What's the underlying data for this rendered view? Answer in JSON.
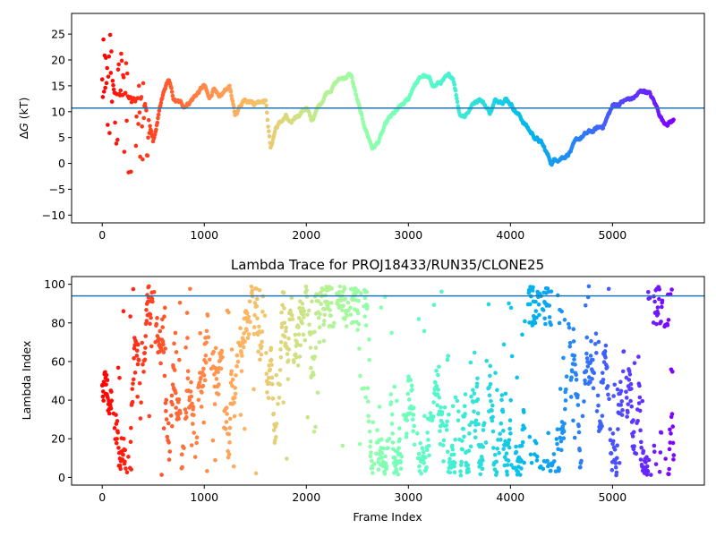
{
  "chart_data": [
    {
      "type": "scatter",
      "title": "",
      "xlabel": "",
      "ylabel": "ΔG (kT)",
      "ylabel_parts": {
        "delta": "Δ",
        "var": "G",
        "unit": " (kT)"
      },
      "xlim": [
        -300,
        5900
      ],
      "ylim": [
        -11.5,
        29
      ],
      "xticks": [
        0,
        1000,
        2000,
        3000,
        4000,
        5000
      ],
      "yticks": [
        -10,
        -5,
        0,
        5,
        10,
        15,
        20,
        25
      ],
      "hline": 10.7,
      "hline_color": "#1f77b4",
      "colormap": "rainbow",
      "grid": false,
      "series": [
        {
          "x_range": [
            0,
            5600
          ],
          "anchors": [
            [
              0,
              12
            ],
            [
              80,
              18
            ],
            [
              120,
              14
            ],
            [
              200,
              14
            ],
            [
              300,
              12
            ],
            [
              400,
              13
            ],
            [
              500,
              4
            ],
            [
              550,
              9
            ],
            [
              600,
              13
            ],
            [
              650,
              16
            ],
            [
              700,
              12
            ],
            [
              800,
              11
            ],
            [
              900,
              13
            ],
            [
              1000,
              15
            ],
            [
              1050,
              12
            ],
            [
              1100,
              15
            ],
            [
              1150,
              12
            ],
            [
              1250,
              15
            ],
            [
              1300,
              9
            ],
            [
              1400,
              13
            ],
            [
              1500,
              12
            ],
            [
              1600,
              13
            ],
            [
              1650,
              3
            ],
            [
              1700,
              7
            ],
            [
              1800,
              9
            ],
            [
              1850,
              7
            ],
            [
              1900,
              9
            ],
            [
              2000,
              11
            ],
            [
              2050,
              8
            ],
            [
              2100,
              10
            ],
            [
              2200,
              14
            ],
            [
              2300,
              16
            ],
            [
              2400,
              17
            ],
            [
              2440,
              17
            ],
            [
              2500,
              12
            ],
            [
              2550,
              8
            ],
            [
              2650,
              3
            ],
            [
              2700,
              4
            ],
            [
              2800,
              8
            ],
            [
              2900,
              10
            ],
            [
              3000,
              12
            ],
            [
              3050,
              15
            ],
            [
              3150,
              17
            ],
            [
              3250,
              15
            ],
            [
              3350,
              16
            ],
            [
              3440,
              16.5
            ],
            [
              3500,
              10
            ],
            [
              3550,
              9.5
            ],
            [
              3650,
              12
            ],
            [
              3700,
              13
            ],
            [
              3800,
              10
            ],
            [
              3850,
              12
            ],
            [
              3950,
              13
            ],
            [
              4000,
              12
            ],
            [
              4100,
              9
            ],
            [
              4200,
              6
            ],
            [
              4300,
              4
            ],
            [
              4400,
              0
            ],
            [
              4450,
              1
            ],
            [
              4550,
              2
            ],
            [
              4700,
              5
            ],
            [
              4900,
              7
            ],
            [
              5000,
              11
            ],
            [
              5100,
              12
            ],
            [
              5200,
              12.5
            ],
            [
              5300,
              14
            ],
            [
              5350,
              14
            ],
            [
              5400,
              12
            ],
            [
              5450,
              10
            ],
            [
              5500,
              8
            ],
            [
              5600,
              8.5
            ]
          ],
          "noise_early": {
            "x_until": 500,
            "y_range": [
              -4,
              28
            ]
          }
        }
      ]
    },
    {
      "type": "scatter",
      "title": "Lambda Trace for PROJ18433/RUN35/CLONE25",
      "xlabel": "Frame Index",
      "ylabel": "Lambda Index",
      "xlim": [
        -300,
        5900
      ],
      "ylim": [
        -4,
        104
      ],
      "xticks": [
        0,
        1000,
        2000,
        3000,
        4000,
        5000
      ],
      "yticks": [
        0,
        20,
        40,
        60,
        80,
        100
      ],
      "hline": 94,
      "hline_color": "#1f77b4",
      "colormap": "rainbow",
      "grid": false,
      "series": [
        {
          "x_range": [
            0,
            5600
          ],
          "y_range": [
            1,
            99
          ],
          "dense_high_bands": [
            [
              2200,
              2600
            ],
            [
              4150,
              4400
            ],
            [
              5350,
              5550
            ]
          ]
        }
      ]
    }
  ]
}
